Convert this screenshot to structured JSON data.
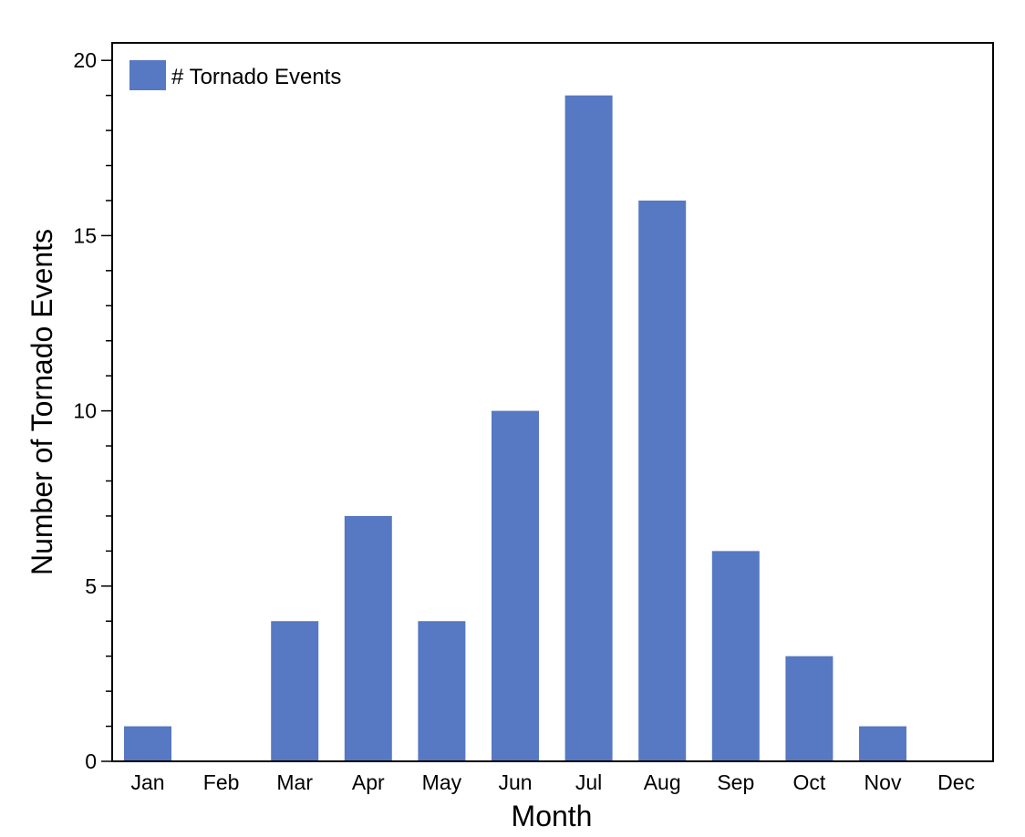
{
  "chart_data": {
    "type": "bar",
    "title": "",
    "xlabel": "Month",
    "ylabel": "Number of Tornado Events",
    "categories": [
      "Jan",
      "Feb",
      "Mar",
      "Apr",
      "May",
      "Jun",
      "Jul",
      "Aug",
      "Sep",
      "Oct",
      "Nov",
      "Dec"
    ],
    "series": [
      {
        "name": "# Tornado Events",
        "color": "#5778c2",
        "values": [
          1,
          0,
          4,
          7,
          4,
          10,
          19,
          16,
          6,
          3,
          1,
          0
        ]
      }
    ],
    "ylim": [
      0,
      20.5
    ],
    "yticks": [
      "0",
      "5",
      "10",
      "15",
      "20"
    ],
    "ytick_values": [
      0,
      5,
      10,
      15,
      20
    ],
    "y_minor_step": 1,
    "grid": false,
    "legend_position": "top-left"
  }
}
